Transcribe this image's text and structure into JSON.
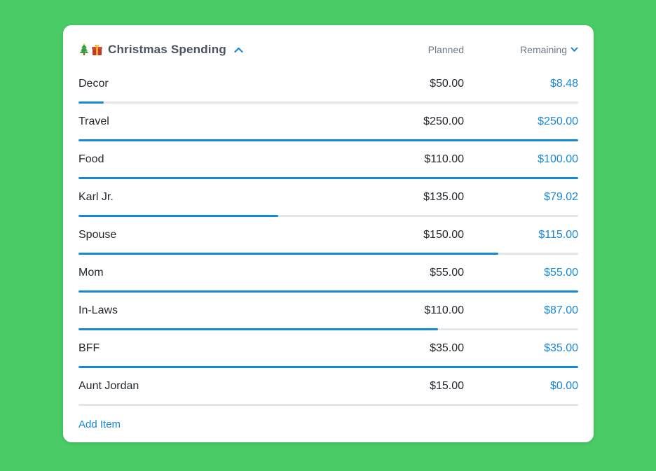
{
  "colors": {
    "background": "#4acb66",
    "card_bg": "#ffffff",
    "accent_blue": "#1787d8",
    "title_text": "#4a535e",
    "header_text": "#6f7885",
    "item_text": "#23282e",
    "bar_track": "#e5e6e8"
  },
  "card": {
    "title": "Christmas Spending",
    "title_icons": [
      "christmas-tree-icon",
      "gift-icon"
    ],
    "collapse_icon": "chevron-up-icon",
    "columns": {
      "planned": "Planned",
      "remaining": "Remaining",
      "remaining_sort_icon": "chevron-down-icon"
    },
    "items": [
      {
        "name": "Decor",
        "planned": "$50.00",
        "remaining": "$8.48",
        "progress": 0.05
      },
      {
        "name": "Travel",
        "planned": "$250.00",
        "remaining": "$250.00",
        "progress": 1
      },
      {
        "name": "Food",
        "planned": "$110.00",
        "remaining": "$100.00",
        "progress": 1
      },
      {
        "name": "Karl Jr.",
        "planned": "$135.00",
        "remaining": "$79.02",
        "progress": 0.4
      },
      {
        "name": "Spouse",
        "planned": "$150.00",
        "remaining": "$115.00",
        "progress": 0.84
      },
      {
        "name": "Mom",
        "planned": "$55.00",
        "remaining": "$55.00",
        "progress": 1
      },
      {
        "name": "In-Laws",
        "planned": "$110.00",
        "remaining": "$87.00",
        "progress": 0.72
      },
      {
        "name": "BFF",
        "planned": "$35.00",
        "remaining": "$35.00",
        "progress": 1
      },
      {
        "name": "Aunt Jordan",
        "planned": "$15.00",
        "remaining": "$0.00",
        "progress": 0
      }
    ],
    "add_item_label": "Add Item"
  }
}
